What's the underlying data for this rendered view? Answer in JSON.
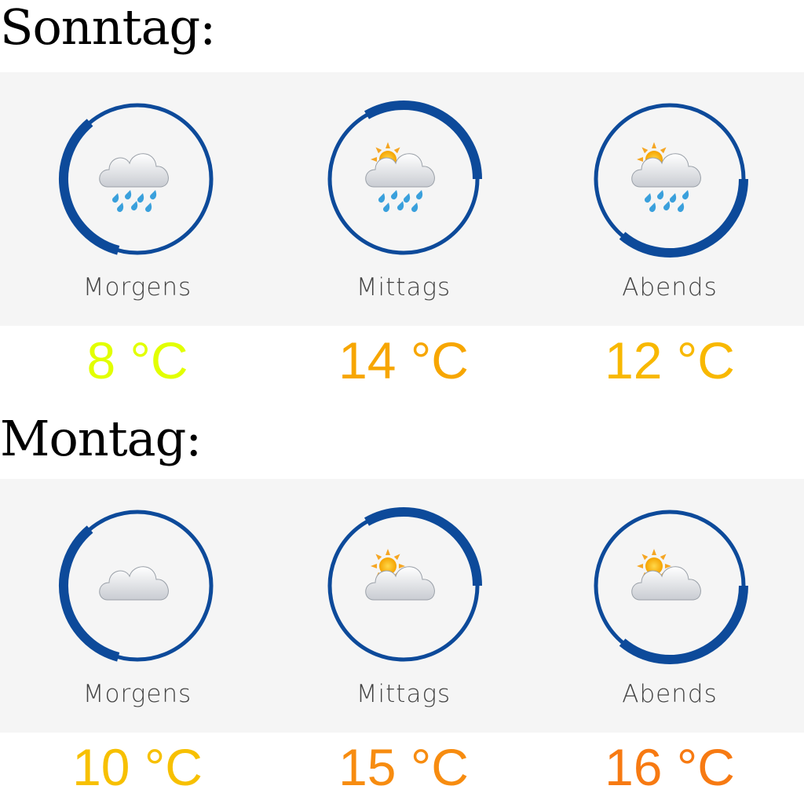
{
  "accent_color": "#0d4a9a",
  "days": [
    {
      "title": "Sonntag:",
      "slots": [
        {
          "period": "Morgens",
          "icon": "rain-cloud-icon",
          "temp": "8 °C",
          "temp_color": "#e2ff00"
        },
        {
          "period": "Mittags",
          "icon": "sun-behind-rain-cloud-icon",
          "temp": "14 °C",
          "temp_color": "#f7a600"
        },
        {
          "period": "Abends",
          "icon": "sun-behind-rain-cloud-icon",
          "temp": "12 °C",
          "temp_color": "#f8b800"
        }
      ]
    },
    {
      "title": "Montag:",
      "slots": [
        {
          "period": "Morgens",
          "icon": "cloud-icon",
          "temp": "10 °C",
          "temp_color": "#f7c000"
        },
        {
          "period": "Mittags",
          "icon": "sun-behind-cloud-icon",
          "temp": "15 °C",
          "temp_color": "#f78c10"
        },
        {
          "period": "Abends",
          "icon": "sun-behind-cloud-icon",
          "temp": "16 °C",
          "temp_color": "#f77a12"
        }
      ]
    }
  ]
}
